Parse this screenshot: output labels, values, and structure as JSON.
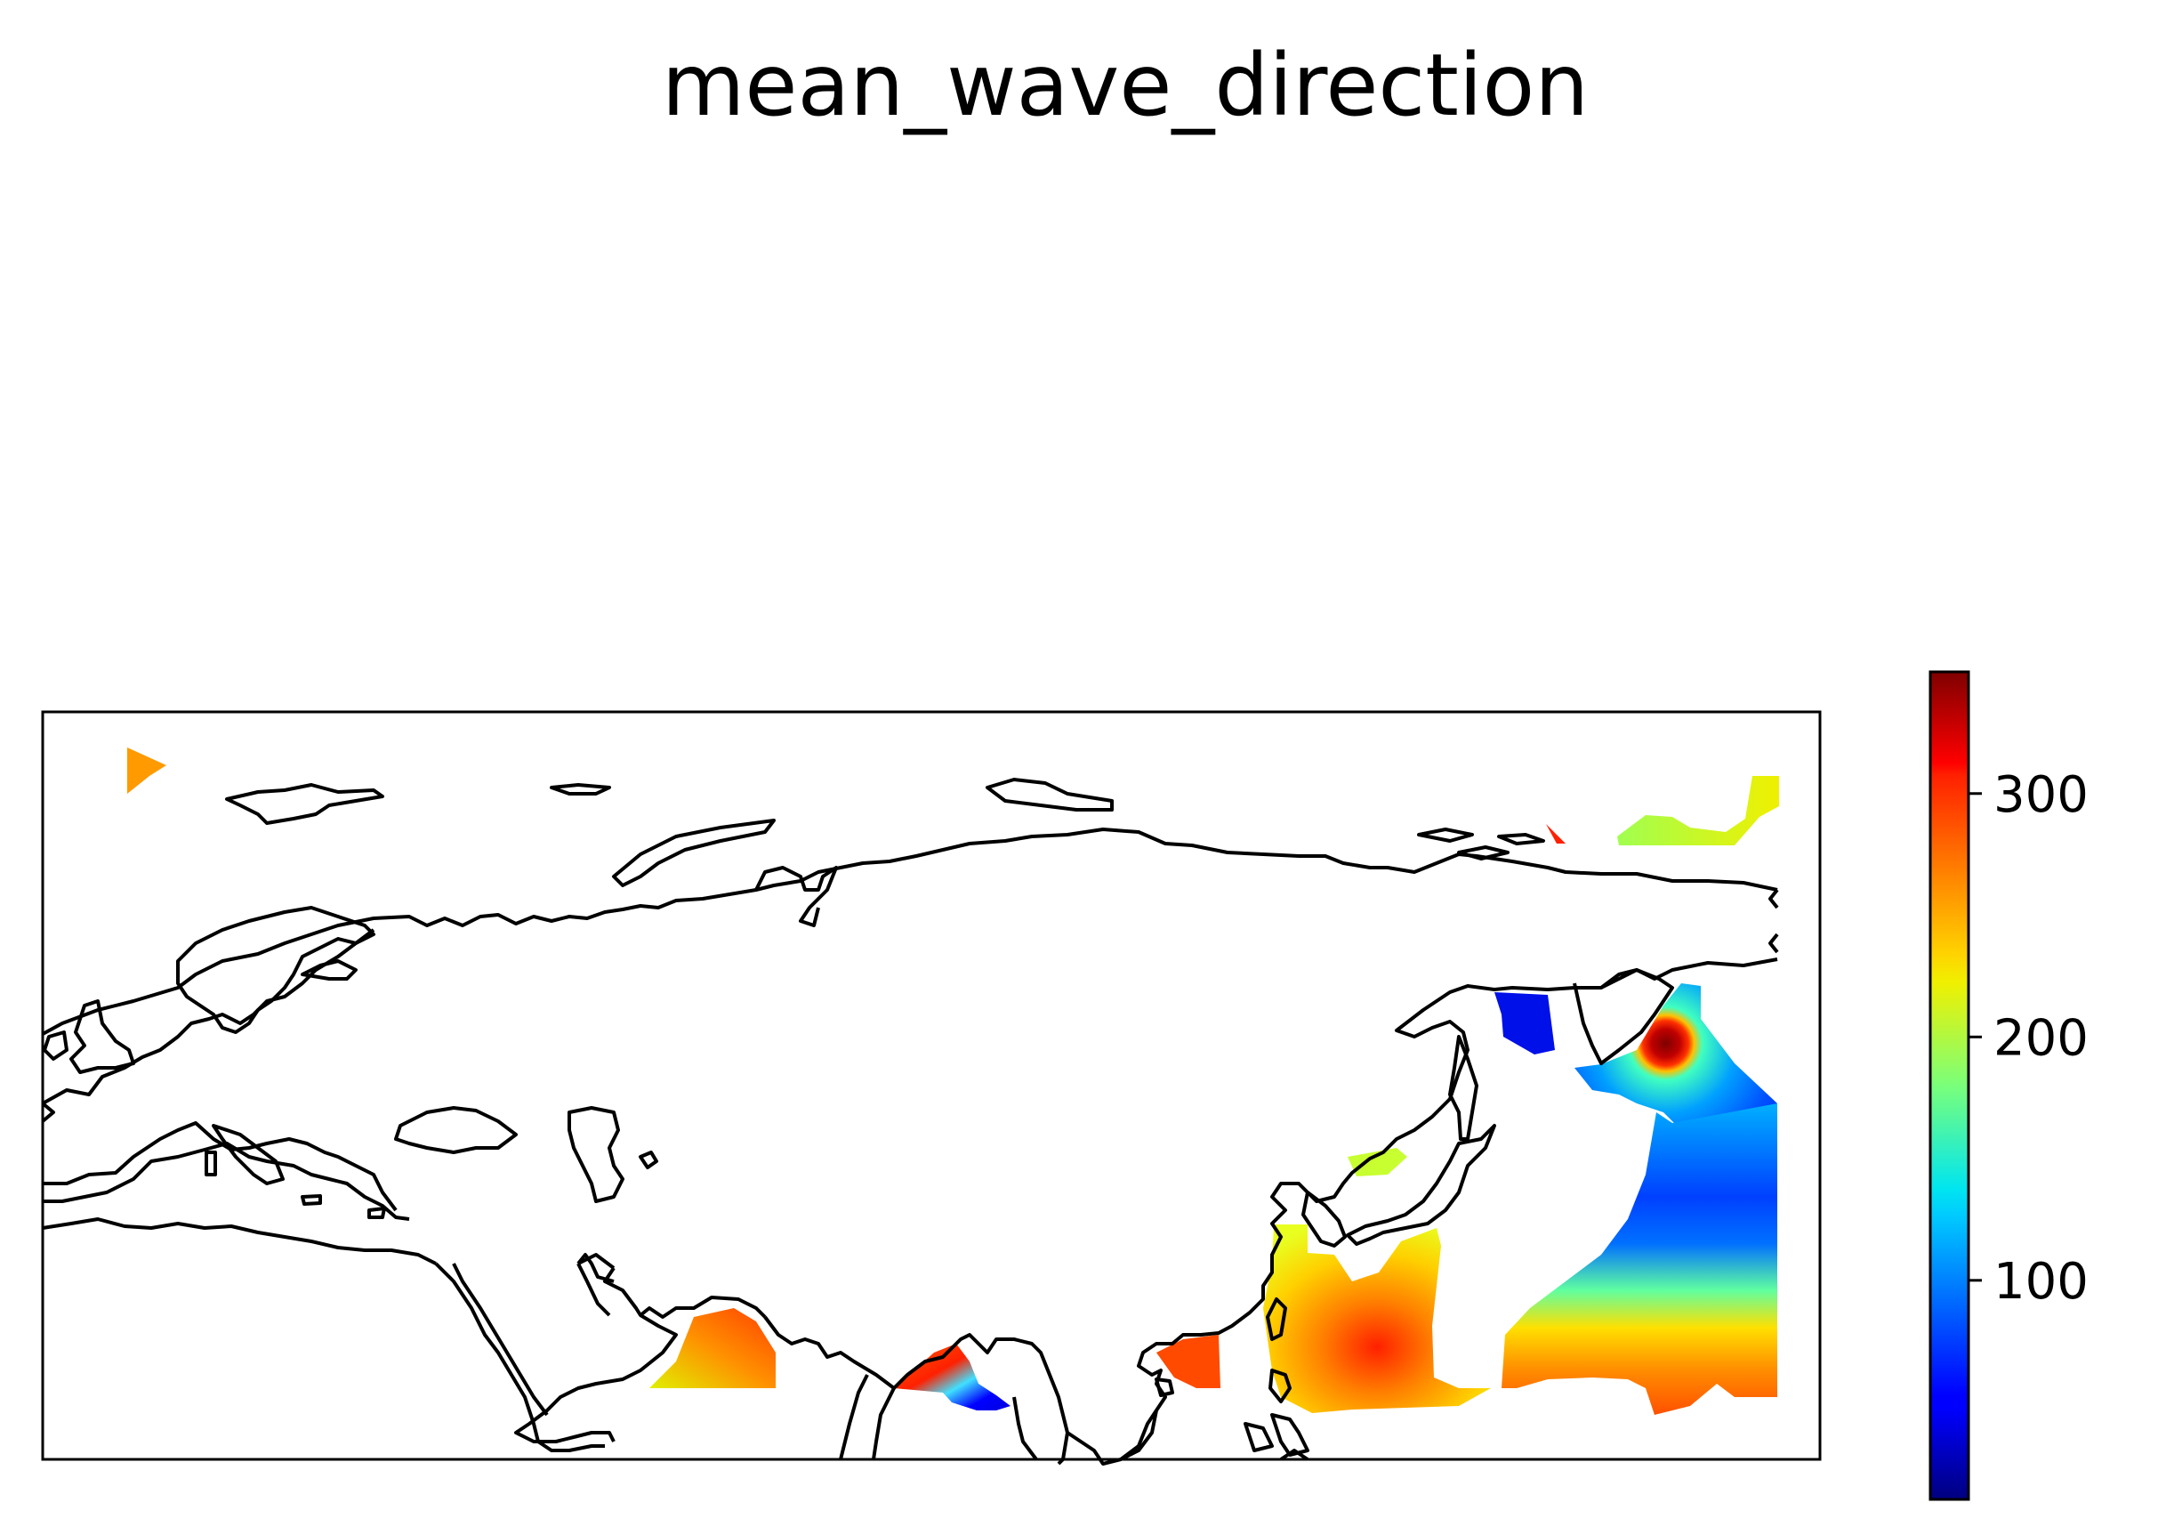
{
  "title": "mean_wave_direction",
  "colorbar": {
    "colormap": "jet",
    "min": 10,
    "max": 350,
    "ticks": [
      {
        "value": 100,
        "label": "100"
      },
      {
        "value": 200,
        "label": "200"
      },
      {
        "value": 300,
        "label": "300"
      }
    ]
  },
  "colors": {
    "coastline": "#000000",
    "frame": "#000000",
    "background": "#ffffff"
  }
}
